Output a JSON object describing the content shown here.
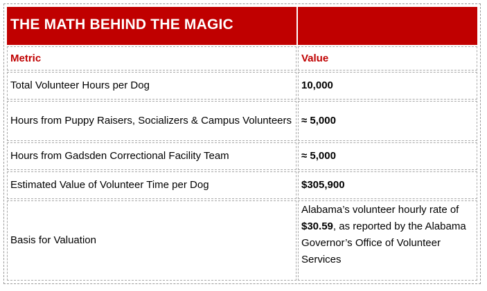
{
  "table": {
    "title": "THE MATH BEHIND THE MAGIC",
    "headers": {
      "metric": "Metric",
      "value": "Value"
    },
    "rows": [
      {
        "metric": "Total Volunteer Hours per Dog",
        "value": "10,000"
      },
      {
        "metric": "Hours from Puppy Raisers, Socializers & Campus Volunteers",
        "value": "≈ 5,000"
      },
      {
        "metric": "Hours from Gadsden Correctional Facility Team",
        "value": "≈ 5,000"
      },
      {
        "metric": "Estimated Value of Volunteer Time per Dog",
        "value": "$305,900"
      },
      {
        "metric": "Basis for Valuation",
        "value_prefix": "Alabama’s volunteer hourly rate of",
        "value_bold": "$30.59",
        "value_suffix": ", as reported by the Alabama Governor’s Office of Volunteer Services"
      }
    ]
  },
  "colors": {
    "title_background": "#c00000",
    "title_text": "#ffffff",
    "header_text": "#c00000"
  }
}
